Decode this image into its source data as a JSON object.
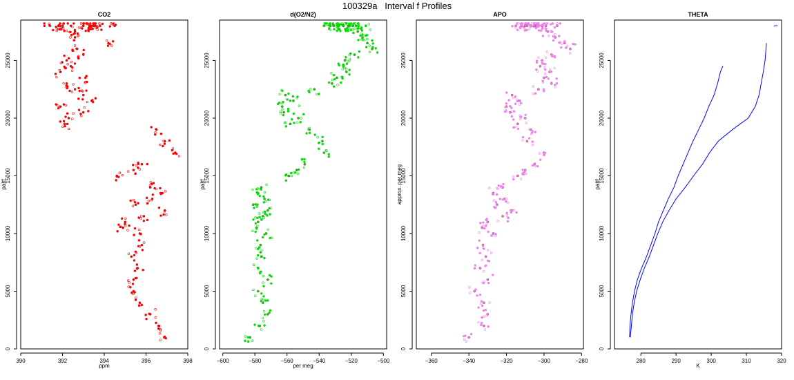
{
  "figure_title": "100329a   Interval f Profiles",
  "chart_data": [
    {
      "type": "scatter",
      "title": "CO2",
      "xlabel": "ppm",
      "ylabel": "paltf",
      "xlim": [
        390,
        398
      ],
      "ylim": [
        0,
        28500
      ],
      "xticks": [
        390,
        392,
        394,
        396,
        398
      ],
      "yticks": [
        0,
        5000,
        10000,
        15000,
        20000,
        25000
      ],
      "point_color": "#ff0000",
      "series": [
        {
          "x": [
            396.9,
            396.6,
            396.2,
            395.7,
            395.4,
            395.4,
            395.6,
            395.3,
            395.8,
            395.7,
            394.9,
            395.0,
            395.9,
            396.9,
            395.5,
            396.3,
            396.7,
            396.2,
            394.6,
            395.4,
            395.8,
            397.4,
            396.9,
            396.5,
            392.1,
            392.3,
            393.0,
            391.9,
            393.4,
            393.0,
            392.6,
            392.2,
            393.1,
            391.9,
            392.4,
            392.2,
            393.0,
            392.7,
            394.2,
            392.6,
            392.6,
            391.4,
            391.8,
            394.5,
            393.3,
            392.4,
            392.0,
            393.8,
            393.0,
            393.5,
            393.0,
            393.3,
            393.4,
            392.0
          ],
          "y": [
            1000,
            2000,
            3000,
            4000,
            5000,
            6000,
            7000,
            8000,
            9000,
            10000,
            10500,
            11000,
            11500,
            12000,
            12500,
            13000,
            13500,
            14000,
            15000,
            15500,
            16000,
            17000,
            18000,
            19000,
            19500,
            20000,
            20500,
            21000,
            21500,
            22000,
            22500,
            23000,
            23500,
            24000,
            24500,
            25000,
            25500,
            26000,
            26500,
            27000,
            27500,
            28000,
            28000,
            28000,
            28000,
            28000,
            28000,
            28000,
            28000,
            28000,
            28000,
            28000,
            28000,
            28000
          ]
        }
      ]
    },
    {
      "type": "scatter",
      "title": "d(O2/N2)",
      "xlabel": "per meg",
      "ylabel": "paltf",
      "xlim": [
        -602,
        -498
      ],
      "ylim": [
        0,
        28500
      ],
      "xticks": [
        -600,
        -580,
        -560,
        -540,
        -520,
        -500
      ],
      "yticks": [
        0,
        5000,
        10000,
        15000,
        20000,
        25000
      ],
      "point_color": "#00dd00",
      "series": [
        {
          "x": [
            -583.0,
            -577.0,
            -572.0,
            -575.0,
            -578.0,
            -572.0,
            -578.0,
            -576.0,
            -576.5,
            -573.0,
            -579.0,
            -578.0,
            -575.0,
            -572.0,
            -581.0,
            -574.0,
            -578.0,
            -576.0,
            -559.0,
            -554.0,
            -549.0,
            -537.0,
            -538.0,
            -546.0,
            -558.0,
            -553.0,
            -562.0,
            -563.0,
            -556.0,
            -561.0,
            -543.0,
            -532.0,
            -529.0,
            -523.0,
            -525.0,
            -524.0,
            -518.0,
            -507.0,
            -510.0,
            -513.0,
            -516.0,
            -519.0,
            -522.0,
            -525.0,
            -521.0,
            -519.0,
            -517.0,
            -511.0,
            -528.0,
            -533.0,
            -531.0,
            -525.0,
            -531.0,
            -537.0
          ],
          "y": [
            1000,
            2000,
            3000,
            4000,
            5000,
            6000,
            7000,
            8000,
            9000,
            10000,
            10500,
            11000,
            11500,
            12000,
            12500,
            13000,
            13500,
            14000,
            15000,
            15500,
            16000,
            17000,
            18000,
            19000,
            19500,
            20000,
            20500,
            21000,
            21500,
            22000,
            22500,
            23000,
            23500,
            24000,
            24500,
            25000,
            25500,
            26000,
            26500,
            27000,
            27500,
            28000,
            28000,
            28000,
            28000,
            28000,
            28000,
            28000,
            28000,
            28000,
            28000,
            28000,
            28000,
            28000
          ]
        }
      ]
    },
    {
      "type": "scatter",
      "title": "APO",
      "xlabel": "",
      "ylabel": "approx. per meg",
      "xlim": [
        -368,
        -279
      ],
      "ylim": [
        0,
        28500
      ],
      "xticks": [
        -360,
        -340,
        -320,
        -300,
        -280
      ],
      "yticks": [
        0,
        5000,
        10000,
        15000,
        20000,
        25000
      ],
      "point_color": "#ee82ee",
      "series": [
        {
          "x": [
            -340.0,
            -332.0,
            -330.0,
            -332.0,
            -337.0,
            -330.0,
            -334.0,
            -331.0,
            -332.5,
            -327.0,
            -333.0,
            -330.0,
            -322.0,
            -317.0,
            -325.0,
            -321.0,
            -327.0,
            -322.0,
            -314.0,
            -310.0,
            -305.0,
            -300.0,
            -309.0,
            -307.0,
            -314.0,
            -310.0,
            -318.0,
            -320.0,
            -313.0,
            -317.0,
            -303.0,
            -296.0,
            -300.0,
            -297.0,
            -302.0,
            -301.0,
            -296.0,
            -286.0,
            -289.0,
            -294.0,
            -298.0,
            -301.0,
            -304.0,
            -307.0,
            -303.0,
            -301.0,
            -299.0,
            -293.0,
            -309.0,
            -312.0,
            -310.0,
            -305.0,
            -310.0,
            -315.0
          ],
          "y": [
            1000,
            2000,
            3000,
            4000,
            5000,
            6000,
            7000,
            8000,
            9000,
            10000,
            10500,
            11000,
            11500,
            12000,
            12500,
            13000,
            13500,
            14000,
            15000,
            15500,
            16000,
            17000,
            18000,
            19000,
            19500,
            20000,
            20500,
            21000,
            21500,
            22000,
            22500,
            23000,
            23500,
            24000,
            24500,
            25000,
            25500,
            26000,
            26500,
            27000,
            27500,
            28000,
            28000,
            28000,
            28000,
            28000,
            28000,
            28000,
            28000,
            28000,
            28000,
            28000,
            28000,
            28000
          ]
        }
      ]
    },
    {
      "type": "line",
      "title": "THETA",
      "xlabel": "K",
      "ylabel": "paltf",
      "xlim": [
        272.5,
        320
      ],
      "ylim": [
        0,
        28500
      ],
      "xticks": [
        280,
        290,
        300,
        310,
        320
      ],
      "yticks": [
        0,
        5000,
        10000,
        15000,
        20000,
        25000
      ],
      "line_color": "#0000ff",
      "series": [
        {
          "x": [
            276.8,
            276.9,
            277.2,
            277.6,
            278.2,
            279.0,
            280.2,
            281.6,
            282.8,
            284.0,
            285.0,
            286.4,
            287.8,
            289.4,
            290.6,
            292.0,
            293.4,
            294.8,
            296.4,
            298.0,
            299.3,
            300.8,
            301.8,
            302.6,
            303.3
          ],
          "y": [
            1000,
            2000,
            3000,
            4000,
            5000,
            6000,
            7000,
            8000,
            9000,
            10000,
            11000,
            12000,
            13000,
            14000,
            15000,
            16000,
            17000,
            18000,
            19000,
            20000,
            21000,
            22000,
            23000,
            24000,
            24500
          ]
        },
        {
          "x": [
            277.0,
            277.3,
            277.6,
            278.1,
            278.8,
            279.8,
            281.0,
            282.4,
            283.6,
            284.8,
            286.2,
            288.0,
            290.0,
            292.6,
            295.0,
            297.5,
            299.5,
            302.0,
            306.0,
            310.5,
            312.5,
            313.6,
            314.8,
            315.3,
            315.7
          ],
          "y": [
            1000,
            2000,
            3000,
            4000,
            5000,
            6000,
            7000,
            8000,
            9000,
            10000,
            11000,
            12000,
            13000,
            14000,
            15000,
            16000,
            17000,
            18000,
            19000,
            20000,
            21000,
            22000,
            24000,
            25000,
            26500
          ]
        },
        {
          "x": [
            317.8,
            318.1,
            318.5,
            318.9
          ],
          "y": [
            27950,
            28000,
            28000,
            28000
          ]
        }
      ]
    }
  ]
}
